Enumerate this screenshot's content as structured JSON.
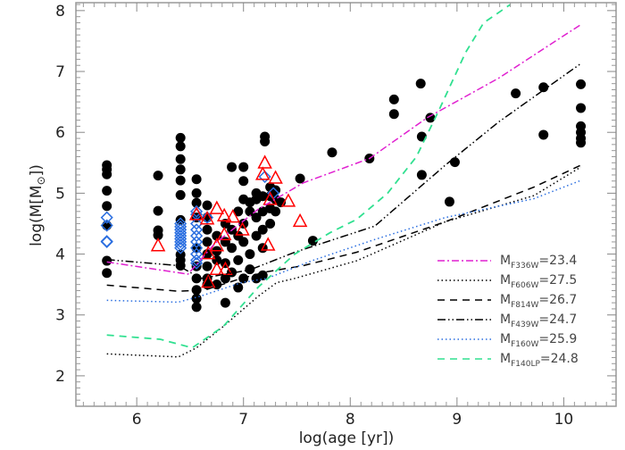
{
  "chart_data": {
    "type": "scatter",
    "title": "",
    "xlabel": "log(age [yr])",
    "ylabel_parts": {
      "pre": "log(M[M",
      "sub": "⊙",
      "post": "])"
    },
    "xlim": [
      5.43,
      10.49
    ],
    "ylim": [
      1.5,
      8.13
    ],
    "xticks": [
      6,
      7,
      8,
      9,
      10
    ],
    "yticks": [
      2,
      3,
      4,
      5,
      6,
      7,
      8
    ],
    "xtick_labels": [
      "6",
      "7",
      "8",
      "9",
      "10"
    ],
    "ytick_labels": [
      "2",
      "3",
      "4",
      "5",
      "6",
      "7",
      "8"
    ],
    "grid": false,
    "legend_placement": "bottom-right",
    "markers": {
      "circles": {
        "color": "#000000",
        "points": [
          [
            5.72,
            5.46
          ],
          [
            5.72,
            5.39
          ],
          [
            5.72,
            5.31
          ],
          [
            5.72,
            5.04
          ],
          [
            5.72,
            4.79
          ],
          [
            5.72,
            4.47
          ],
          [
            5.72,
            3.89
          ],
          [
            5.72,
            3.69
          ],
          [
            6.2,
            5.29
          ],
          [
            6.2,
            4.71
          ],
          [
            6.2,
            4.39
          ],
          [
            6.2,
            4.31
          ],
          [
            6.41,
            5.91
          ],
          [
            6.41,
            5.77
          ],
          [
            6.41,
            5.56
          ],
          [
            6.41,
            5.39
          ],
          [
            6.41,
            5.21
          ],
          [
            6.41,
            4.97
          ],
          [
            6.41,
            4.56
          ],
          [
            6.41,
            3.99
          ],
          [
            6.41,
            3.9
          ],
          [
            6.41,
            3.81
          ],
          [
            6.56,
            5.23
          ],
          [
            6.56,
            5.0
          ],
          [
            6.56,
            4.84
          ],
          [
            6.56,
            4.6
          ],
          [
            6.56,
            4.1
          ],
          [
            6.56,
            3.8
          ],
          [
            6.56,
            3.6
          ],
          [
            6.56,
            3.41
          ],
          [
            6.56,
            3.27
          ],
          [
            6.56,
            3.13
          ],
          [
            6.66,
            4.8
          ],
          [
            6.66,
            4.6
          ],
          [
            6.66,
            4.4
          ],
          [
            6.66,
            4.2
          ],
          [
            6.66,
            4.0
          ],
          [
            6.66,
            3.8
          ],
          [
            6.66,
            3.6
          ],
          [
            6.66,
            3.5
          ],
          [
            6.75,
            4.3
          ],
          [
            6.75,
            4.05
          ],
          [
            6.75,
            3.9
          ],
          [
            6.75,
            3.5
          ],
          [
            6.83,
            4.5
          ],
          [
            6.83,
            4.2
          ],
          [
            6.83,
            3.85
          ],
          [
            6.83,
            3.6
          ],
          [
            6.83,
            3.2
          ],
          [
            6.89,
            5.43
          ],
          [
            6.89,
            4.4
          ],
          [
            6.89,
            4.1
          ],
          [
            6.89,
            3.7
          ],
          [
            6.95,
            4.7
          ],
          [
            6.95,
            4.3
          ],
          [
            6.95,
            3.9
          ],
          [
            6.95,
            3.45
          ],
          [
            7.0,
            5.43
          ],
          [
            7.0,
            5.2
          ],
          [
            7.0,
            4.9
          ],
          [
            7.0,
            4.5
          ],
          [
            7.0,
            4.2
          ],
          [
            7.0,
            3.6
          ],
          [
            7.06,
            4.85
          ],
          [
            7.06,
            4.7
          ],
          [
            7.06,
            4.0
          ],
          [
            7.06,
            3.75
          ],
          [
            7.12,
            5.0
          ],
          [
            7.12,
            4.9
          ],
          [
            7.12,
            4.6
          ],
          [
            7.12,
            4.3
          ],
          [
            7.12,
            3.6
          ],
          [
            7.18,
            4.95
          ],
          [
            7.18,
            4.7
          ],
          [
            7.18,
            4.4
          ],
          [
            7.18,
            4.1
          ],
          [
            7.18,
            3.65
          ],
          [
            7.2,
            5.93
          ],
          [
            7.2,
            5.85
          ],
          [
            7.25,
            5.1
          ],
          [
            7.25,
            4.95
          ],
          [
            7.25,
            4.75
          ],
          [
            7.25,
            4.5
          ],
          [
            7.3,
            5.05
          ],
          [
            7.3,
            4.9
          ],
          [
            7.3,
            4.7
          ],
          [
            7.35,
            4.85
          ],
          [
            7.53,
            5.24
          ],
          [
            7.65,
            4.22
          ],
          [
            7.83,
            5.67
          ],
          [
            8.18,
            5.57
          ],
          [
            8.41,
            6.54
          ],
          [
            8.41,
            6.3
          ],
          [
            8.66,
            6.8
          ],
          [
            8.75,
            6.24
          ],
          [
            8.67,
            5.93
          ],
          [
            8.67,
            5.3
          ],
          [
            8.98,
            5.51
          ],
          [
            8.93,
            4.86
          ],
          [
            9.55,
            6.64
          ],
          [
            9.81,
            6.74
          ],
          [
            9.81,
            5.96
          ],
          [
            10.16,
            6.79
          ],
          [
            10.16,
            6.4
          ],
          [
            10.16,
            6.1
          ],
          [
            10.16,
            6.0
          ],
          [
            10.16,
            5.9
          ],
          [
            10.16,
            5.83
          ]
        ]
      },
      "diamonds": {
        "color": "#2a6ee0",
        "points": [
          [
            5.72,
            4.6
          ],
          [
            5.72,
            4.47
          ],
          [
            5.72,
            4.21
          ],
          [
            5.72,
            4.2
          ],
          [
            6.41,
            4.5
          ],
          [
            6.41,
            4.45
          ],
          [
            6.41,
            4.4
          ],
          [
            6.41,
            4.35
          ],
          [
            6.41,
            4.3
          ],
          [
            6.41,
            4.25
          ],
          [
            6.41,
            4.2
          ],
          [
            6.41,
            4.15
          ],
          [
            6.41,
            4.1
          ],
          [
            6.56,
            4.7
          ],
          [
            6.56,
            4.65
          ],
          [
            6.56,
            4.5
          ],
          [
            6.56,
            4.4
          ],
          [
            6.56,
            4.3
          ],
          [
            6.56,
            4.2
          ],
          [
            6.56,
            4.1
          ],
          [
            6.56,
            4.0
          ],
          [
            6.56,
            3.9
          ],
          [
            6.56,
            3.85
          ],
          [
            6.66,
            4.6
          ],
          [
            7.2,
            5.27
          ],
          [
            7.28,
            5.0
          ]
        ]
      },
      "triangles": {
        "color": "#ff0000",
        "points": [
          [
            6.2,
            4.13
          ],
          [
            6.56,
            4.64
          ],
          [
            6.66,
            4.57
          ],
          [
            6.67,
            4.0
          ],
          [
            6.67,
            3.53
          ],
          [
            6.75,
            4.74
          ],
          [
            6.75,
            4.13
          ],
          [
            6.75,
            3.74
          ],
          [
            6.82,
            4.62
          ],
          [
            6.82,
            4.31
          ],
          [
            6.83,
            3.74
          ],
          [
            6.9,
            4.6
          ],
          [
            6.99,
            4.39
          ],
          [
            7.18,
            5.3
          ],
          [
            7.2,
            5.49
          ],
          [
            7.23,
            4.14
          ],
          [
            7.25,
            4.89
          ],
          [
            7.3,
            5.24
          ],
          [
            7.42,
            4.86
          ],
          [
            7.53,
            4.53
          ]
        ]
      }
    },
    "series": [
      {
        "name_main": "M",
        "name_sub": "F336W",
        "name_value": "=23.4",
        "color": "#e020d0",
        "style": "dashdot",
        "x": [
          5.72,
          6.48,
          6.73,
          7.14,
          7.56,
          8.18,
          8.72,
          9.39,
          10.16
        ],
        "y": [
          3.87,
          3.67,
          4.17,
          4.74,
          5.17,
          5.57,
          6.24,
          6.89,
          7.77
        ]
      },
      {
        "name_main": "M",
        "name_sub": "F606W",
        "name_value": "=27.5",
        "color": "#000000",
        "style": "dotted",
        "x": [
          5.72,
          6.39,
          6.56,
          6.81,
          7.14,
          7.31,
          7.48,
          8.06,
          8.89,
          9.72,
          10.16
        ],
        "y": [
          2.36,
          2.31,
          2.46,
          2.81,
          3.31,
          3.53,
          3.6,
          3.89,
          4.53,
          4.96,
          5.43
        ]
      },
      {
        "name_main": "M",
        "name_sub": "F814W",
        "name_value": "=26.7",
        "color": "#000000",
        "style": "dashed",
        "x": [
          5.72,
          6.39,
          6.64,
          6.98,
          7.22,
          7.56,
          8.06,
          8.89,
          9.72,
          10.16
        ],
        "y": [
          3.49,
          3.39,
          3.41,
          3.6,
          3.71,
          3.81,
          4.03,
          4.53,
          5.1,
          5.46
        ]
      },
      {
        "name_main": "M",
        "name_sub": "F439W",
        "name_value": "=24.7",
        "color": "#000000",
        "style": "dashdotdot",
        "x": [
          5.72,
          6.39,
          6.6,
          7.06,
          7.48,
          8.23,
          8.89,
          9.39,
          10.16
        ],
        "y": [
          3.91,
          3.81,
          3.6,
          3.74,
          4.03,
          4.46,
          5.46,
          6.17,
          7.13
        ]
      },
      {
        "name_main": "M",
        "name_sub": "F160W",
        "name_value": "=25.9",
        "color": "#2a6ee0",
        "style": "dotted",
        "x": [
          5.72,
          6.39,
          6.6,
          6.98,
          7.22,
          7.64,
          8.23,
          8.89,
          9.72,
          10.16
        ],
        "y": [
          3.24,
          3.21,
          3.31,
          3.53,
          3.6,
          3.89,
          4.24,
          4.6,
          4.91,
          5.21
        ]
      },
      {
        "name_main": "M",
        "name_sub": "F140LP",
        "name_value": "=24.8",
        "color": "#30e090",
        "style": "dashed",
        "x": [
          5.72,
          6.22,
          6.52,
          6.81,
          7.14,
          7.48,
          7.81,
          8.06,
          8.35,
          8.62,
          8.83,
          9.08,
          9.25,
          9.5
        ],
        "y": [
          2.67,
          2.6,
          2.46,
          2.81,
          3.46,
          4.0,
          4.35,
          4.57,
          5.0,
          5.6,
          6.36,
          7.31,
          7.8,
          8.1
        ]
      }
    ]
  }
}
